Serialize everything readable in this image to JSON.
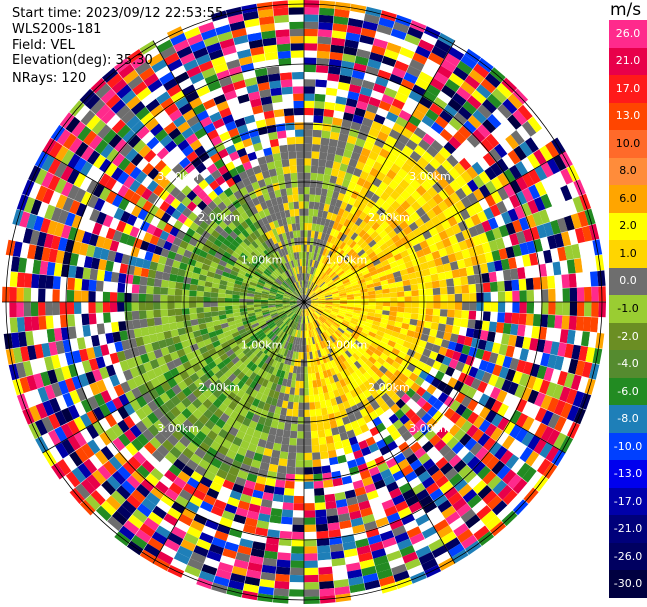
{
  "header": {
    "start_time": "Start time: 2023/09/12 22:53:55",
    "instrument": "WLS200s-181",
    "field": "Field: VEL",
    "elevation": "Elevation(deg): 35.30",
    "nrays": "NRays: 120"
  },
  "colorbar": {
    "units": "m/s",
    "levels": [
      {
        "label": "26.0",
        "color": "#ff2a8c"
      },
      {
        "label": "21.0",
        "color": "#e8004a"
      },
      {
        "label": "17.0",
        "color": "#ff1a1a"
      },
      {
        "label": "13.0",
        "color": "#ff4500"
      },
      {
        "label": "10.0",
        "color": "#ff6a2a"
      },
      {
        "label": "8.0",
        "color": "#ff8c3a"
      },
      {
        "label": "6.0",
        "color": "#ffa500"
      },
      {
        "label": "2.0",
        "color": "#ffff00"
      },
      {
        "label": "1.0",
        "color": "#ffd500"
      },
      {
        "label": "0.0",
        "color": "#6e6e6e"
      },
      {
        "label": "-1.0",
        "color": "#9acd32"
      },
      {
        "label": "-2.0",
        "color": "#6b8e23"
      },
      {
        "label": "-4.0",
        "color": "#558b2f"
      },
      {
        "label": "-6.0",
        "color": "#228b22"
      },
      {
        "label": "-8.0",
        "color": "#1e7fb8"
      },
      {
        "label": "-10.0",
        "color": "#0040ff"
      },
      {
        "label": "-13.0",
        "color": "#0000ee"
      },
      {
        "label": "-17.0",
        "color": "#0000aa"
      },
      {
        "label": "-21.0",
        "color": "#00007a"
      },
      {
        "label": "-26.0",
        "color": "#000060"
      },
      {
        "label": "-30.0",
        "color": "#000040"
      }
    ]
  },
  "chart_data": {
    "type": "heatmap",
    "projection": "polar-ppi",
    "n_rays": 120,
    "ring_labels": [
      "1.00km",
      "2.00km",
      "3.00km"
    ],
    "range_rings_km": [
      1,
      2,
      3,
      4,
      5
    ],
    "spokes_deg": [
      0,
      30,
      60,
      90,
      120,
      150,
      180,
      210,
      240,
      270,
      300,
      330
    ],
    "velocity_pattern": {
      "positive_sector": "north-east to south (yellow 1–6 m/s)",
      "negative_sector": "west to south-west (green -1 to -6 m/s)",
      "outer_ranges": "noisy, full color range -30 to 26 m/s"
    }
  }
}
